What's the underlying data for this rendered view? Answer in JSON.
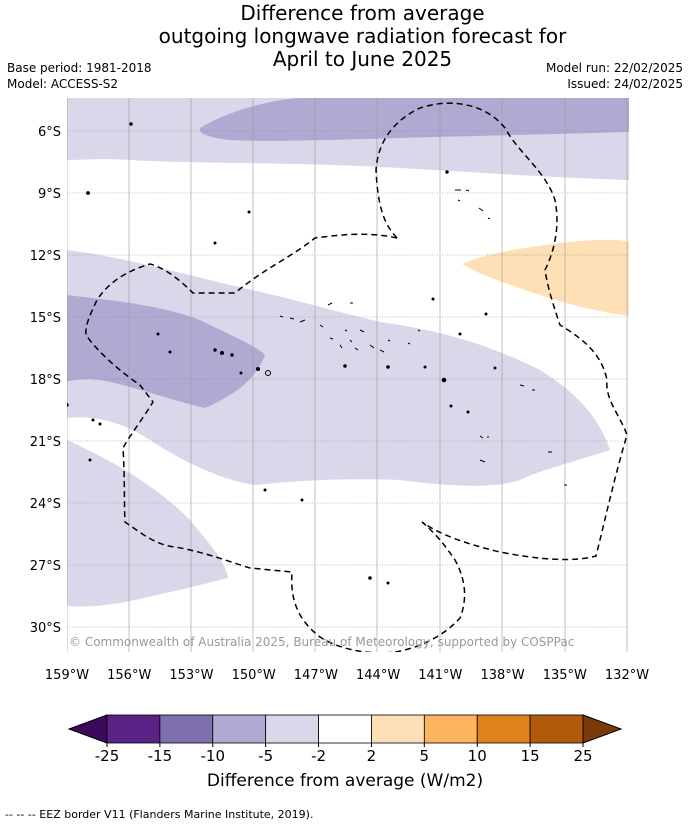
{
  "title": {
    "line1": "Difference from average",
    "line2": "outgoing longwave radiation forecast for",
    "line3": "April to June 2025"
  },
  "meta": {
    "base_period": "Base period: 1981-2018",
    "model": "Model: ACCESS-S2",
    "model_run": "Model run: 22/02/2025",
    "issued": "Issued: 24/02/2025"
  },
  "map": {
    "lat_labels": [
      "6°S",
      "9°S",
      "12°S",
      "15°S",
      "18°S",
      "21°S",
      "24°S",
      "27°S",
      "30°S"
    ],
    "lon_labels": [
      "159°W",
      "156°W",
      "153°W",
      "150°W",
      "147°W",
      "144°W",
      "141°W",
      "138°W",
      "135°W",
      "132°W"
    ],
    "copyright": "© Commonwealth of Australia 2025, Bureau of Meteorology, supported by COSPPac"
  },
  "colorbar": {
    "title": "Difference from average (W/m2)",
    "ticks": [
      "-25",
      "-15",
      "-10",
      "-5",
      "-2",
      "2",
      "5",
      "10",
      "15",
      "25"
    ],
    "colors": [
      "#5a2285",
      "#7f6fad",
      "#b0a9d2",
      "#d8d8ea",
      "#ffffff",
      "#fde0b6",
      "#fbb55f",
      "#e0811a",
      "#b25a0b"
    ],
    "under_color": "#3b0a5c",
    "over_color": "#7a3a07"
  },
  "legend": {
    "eez_label": "-- -- -- EEZ border V11 (Flanders Marine Institute, 2019)."
  }
}
